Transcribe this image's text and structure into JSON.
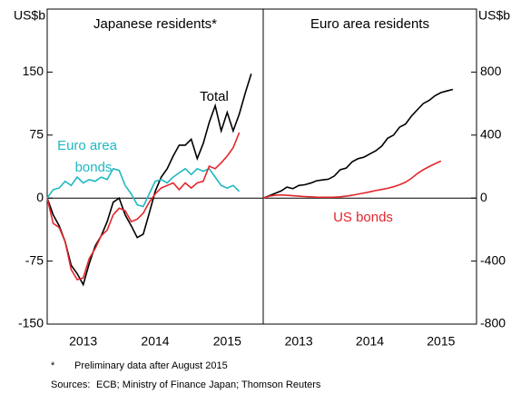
{
  "chart_data": [
    {
      "type": "line",
      "title": "Japanese residents*",
      "ylabel": "US$b",
      "yaxis_side": "left",
      "xlim": [
        2013,
        2016
      ],
      "xticks": [
        {
          "value": 2013.5,
          "label": "2013"
        },
        {
          "value": 2014.5,
          "label": "2014"
        },
        {
          "value": 2015.5,
          "label": "2015"
        }
      ],
      "ylim": [
        -150,
        225
      ],
      "yticks": [
        -150,
        -75,
        0,
        75,
        150
      ],
      "zero_line": true,
      "x": [
        2013,
        2013.083,
        2013.167,
        2013.25,
        2013.333,
        2013.417,
        2013.5,
        2013.583,
        2013.667,
        2013.75,
        2013.833,
        2013.917,
        2014,
        2014.083,
        2014.167,
        2014.25,
        2014.333,
        2014.417,
        2014.5,
        2014.583,
        2014.667,
        2014.75,
        2014.833,
        2014.917,
        2015,
        2015.083,
        2015.167,
        2015.25,
        2015.333,
        2015.417,
        2015.5,
        2015.583,
        2015.667,
        2015.75,
        2015.833
      ],
      "series": [
        {
          "name": "Total",
          "color": "#000000",
          "values": [
            0,
            -20,
            -33,
            -52,
            -80,
            -90,
            -103,
            -78,
            -57,
            -45,
            -28,
            -5,
            0,
            -20,
            -33,
            -47,
            -43,
            -18,
            8,
            25,
            35,
            50,
            63,
            63,
            70,
            47,
            65,
            90,
            110,
            80,
            102,
            80,
            100,
            125,
            148
          ]
        },
        {
          "name": "Euro area bonds",
          "color": "#1fb8c3",
          "values": [
            0,
            10,
            12,
            20,
            15,
            25,
            18,
            22,
            20,
            25,
            22,
            35,
            33,
            15,
            5,
            -8,
            -10,
            5,
            20,
            22,
            18,
            25,
            30,
            35,
            28,
            35,
            32,
            35,
            25,
            15,
            12,
            15,
            8,
            null,
            null
          ]
        },
        {
          "name": "US bonds",
          "color": "#e3262b",
          "values": [
            0,
            -30,
            -35,
            -52,
            -85,
            -97,
            -95,
            -72,
            -60,
            -45,
            -38,
            -20,
            -12,
            -15,
            -28,
            -25,
            -18,
            -5,
            5,
            12,
            15,
            18,
            10,
            18,
            12,
            18,
            20,
            38,
            35,
            42,
            50,
            60,
            78,
            null,
            null
          ]
        }
      ],
      "annotations": [
        {
          "text": "Total",
          "color": "#000000"
        },
        {
          "text": "Euro area",
          "color": "#1fb8c3"
        },
        {
          "text": "bonds",
          "color": "#1fb8c3"
        }
      ]
    },
    {
      "type": "line",
      "title": "Euro area residents",
      "ylabel": "US$b",
      "yaxis_side": "right",
      "xlim": [
        2013,
        2016
      ],
      "xticks": [
        {
          "value": 2013.5,
          "label": "2013"
        },
        {
          "value": 2014.5,
          "label": "2014"
        },
        {
          "value": 2015.5,
          "label": "2015"
        }
      ],
      "ylim": [
        -800,
        1200
      ],
      "yticks": [
        -800,
        -400,
        0,
        400,
        800
      ],
      "zero_line": true,
      "x": [
        2013,
        2013.083,
        2013.167,
        2013.25,
        2013.333,
        2013.417,
        2013.5,
        2013.583,
        2013.667,
        2013.75,
        2013.833,
        2013.917,
        2014,
        2014.083,
        2014.167,
        2014.25,
        2014.333,
        2014.417,
        2014.5,
        2014.583,
        2014.667,
        2014.75,
        2014.833,
        2014.917,
        2015,
        2015.083,
        2015.167,
        2015.25,
        2015.333,
        2015.417,
        2015.5,
        2015.583,
        2015.667
      ],
      "series": [
        {
          "name": "Total",
          "color": "#000000",
          "values": [
            0,
            15,
            30,
            45,
            70,
            60,
            80,
            85,
            95,
            110,
            115,
            120,
            140,
            180,
            190,
            230,
            250,
            260,
            280,
            300,
            330,
            380,
            400,
            450,
            470,
            520,
            560,
            600,
            620,
            650,
            670,
            680,
            690
          ]
        },
        {
          "name": "US bonds",
          "color": "#e3262b",
          "values": [
            0,
            12,
            18,
            20,
            18,
            15,
            12,
            10,
            8,
            6,
            5,
            5,
            6,
            8,
            12,
            18,
            25,
            32,
            40,
            48,
            55,
            62,
            72,
            85,
            100,
            125,
            155,
            180,
            200,
            218,
            235,
            null,
            null
          ]
        }
      ],
      "annotations": [
        {
          "text": "US bonds",
          "color": "#e3262b"
        }
      ]
    }
  ],
  "notes": [
    "*",
    "Preliminary data after August 2015",
    "Sources:",
    "ECB; Ministry of Finance Japan; Thomson Reuters"
  ]
}
